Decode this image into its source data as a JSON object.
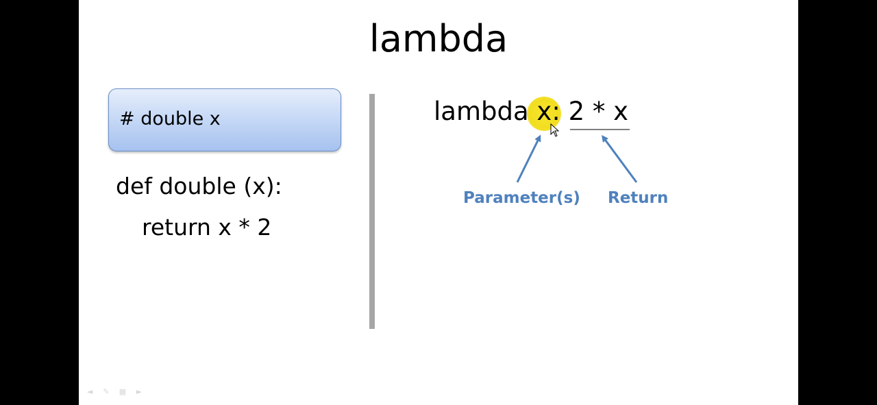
{
  "slide": {
    "title": "lambda",
    "left_panel": {
      "comment_box_text": "# double x",
      "code_lines": [
        "def double (x):",
        "return x * 2"
      ]
    },
    "right_panel": {
      "lambda_keyword": "lambda",
      "lambda_param": "x:",
      "lambda_body": "2 * x",
      "annotations": {
        "parameters_label": "Parameter(s)",
        "return_label": "Return",
        "color": "#4f81bd"
      },
      "highlight_color": "#f2de20"
    }
  },
  "toolbar": {
    "icons": [
      "back-arrow-icon",
      "pen-icon",
      "slide-sorter-icon",
      "forward-arrow-icon"
    ]
  }
}
